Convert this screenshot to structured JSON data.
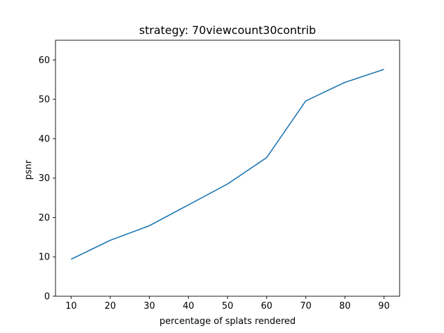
{
  "chart_data": {
    "type": "line",
    "title": "strategy: 70viewcount30contrib",
    "xlabel": "percentage of splats rendered",
    "ylabel": "psnr",
    "x": [
      10,
      20,
      30,
      40,
      50,
      60,
      70,
      80,
      90
    ],
    "series": [
      {
        "values": [
          9.4,
          14.2,
          17.9,
          23.2,
          28.5,
          35.2,
          49.6,
          54.3,
          57.6
        ],
        "color": "#1f77b4"
      }
    ],
    "xticks": [
      10,
      20,
      30,
      40,
      50,
      60,
      70,
      80,
      90
    ],
    "yticks": [
      0,
      10,
      20,
      30,
      40,
      50,
      60
    ],
    "xlim": [
      6,
      94
    ],
    "ylim": [
      0,
      65
    ],
    "grid": false,
    "legend": "none"
  }
}
